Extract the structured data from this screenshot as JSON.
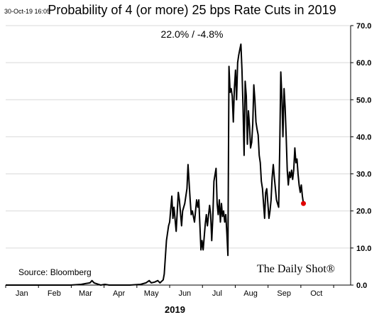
{
  "header": {
    "timestamp": "30-Oct-19 16:05",
    "title": "Probability of 4 (or more) 25 bps Rate Cuts in 2019",
    "subtitle": "22.0%  /  -4.8%"
  },
  "footer": {
    "source": "Source: Bloomberg",
    "brand": "The Daily Shot®"
  },
  "chart_data": {
    "type": "line",
    "title": "Probability of 4 (or more) 25 bps Rate Cuts in 2019",
    "xlabel": "2019",
    "ylabel": "",
    "ylim": [
      0,
      70
    ],
    "yticks": [
      0,
      10,
      20,
      30,
      40,
      50,
      60,
      70
    ],
    "ytick_labels": [
      "0.0",
      "10.0",
      "20.0",
      "30.0",
      "40.0",
      "50.0",
      "60.0",
      "70.0"
    ],
    "x_range_days": [
      0,
      304
    ],
    "xticks": [
      {
        "day": 15,
        "label": "Jan"
      },
      {
        "day": 45,
        "label": "Feb"
      },
      {
        "day": 74,
        "label": "Mar"
      },
      {
        "day": 105,
        "label": "Apr"
      },
      {
        "day": 135,
        "label": "May"
      },
      {
        "day": 166,
        "label": "Jun"
      },
      {
        "day": 196,
        "label": "Jul"
      },
      {
        "day": 227,
        "label": "Aug"
      },
      {
        "day": 258,
        "label": "Sep"
      },
      {
        "day": 288,
        "label": "Oct"
      }
    ],
    "axis_position": "right",
    "grid": true,
    "line_color": "#000000",
    "last_point_color": "#e00000",
    "series": [
      {
        "points": [
          [
            0,
            0
          ],
          [
            10,
            0
          ],
          [
            20,
            0
          ],
          [
            30,
            0
          ],
          [
            40,
            0
          ],
          [
            50,
            0
          ],
          [
            60,
            0
          ],
          [
            70,
            0.2
          ],
          [
            74,
            0.4
          ],
          [
            78,
            0.6
          ],
          [
            80,
            1.2
          ],
          [
            82,
            0.6
          ],
          [
            85,
            0.3
          ],
          [
            88,
            0
          ],
          [
            92,
            0.2
          ],
          [
            96,
            0
          ],
          [
            105,
            0
          ],
          [
            115,
            0
          ],
          [
            125,
            0.2
          ],
          [
            130,
            0.6
          ],
          [
            133,
            1.2
          ],
          [
            135,
            0.6
          ],
          [
            138,
            0.8
          ],
          [
            141,
            1.2
          ],
          [
            143,
            0.6
          ],
          [
            146,
            1.4
          ],
          [
            147,
            3
          ],
          [
            149,
            12
          ],
          [
            151,
            16
          ],
          [
            152,
            17
          ],
          [
            154,
            24
          ],
          [
            155,
            18
          ],
          [
            156,
            21
          ],
          [
            158,
            14.5
          ],
          [
            160,
            25
          ],
          [
            161,
            23
          ],
          [
            163,
            16
          ],
          [
            164,
            20
          ],
          [
            166,
            22
          ],
          [
            168,
            26
          ],
          [
            169,
            32.5
          ],
          [
            171,
            23
          ],
          [
            172,
            19
          ],
          [
            173,
            20
          ],
          [
            175,
            17
          ],
          [
            177,
            23
          ],
          [
            178,
            21
          ],
          [
            179,
            23
          ],
          [
            181,
            9.5
          ],
          [
            182,
            12
          ],
          [
            183,
            9.5
          ],
          [
            185,
            16.5
          ],
          [
            186,
            19
          ],
          [
            187,
            16
          ],
          [
            189,
            21.5
          ],
          [
            190,
            19
          ],
          [
            191,
            12
          ],
          [
            192,
            18
          ],
          [
            193,
            28
          ],
          [
            195,
            31.5
          ],
          [
            196,
            22
          ],
          [
            197,
            19
          ],
          [
            198,
            23
          ],
          [
            199,
            17
          ],
          [
            200,
            22
          ],
          [
            201,
            18.5
          ],
          [
            202,
            20
          ],
          [
            203,
            17
          ],
          [
            204,
            19
          ],
          [
            205,
            14
          ],
          [
            206,
            8
          ],
          [
            207,
            59
          ],
          [
            208,
            52
          ],
          [
            209,
            53
          ],
          [
            210,
            51
          ],
          [
            211,
            44
          ],
          [
            212,
            53
          ],
          [
            213,
            58
          ],
          [
            214,
            50
          ],
          [
            215,
            60
          ],
          [
            216,
            62
          ],
          [
            217,
            63.5
          ],
          [
            218,
            65
          ],
          [
            219,
            58
          ],
          [
            220,
            48
          ],
          [
            221,
            35
          ],
          [
            222,
            55
          ],
          [
            223,
            51
          ],
          [
            224,
            38
          ],
          [
            225,
            47
          ],
          [
            226,
            43
          ],
          [
            227,
            37
          ],
          [
            228,
            38.5
          ],
          [
            229,
            43.5
          ],
          [
            230,
            54
          ],
          [
            231,
            50
          ],
          [
            232,
            44
          ],
          [
            233,
            42
          ],
          [
            234,
            40.5
          ],
          [
            235,
            35
          ],
          [
            236,
            33
          ],
          [
            237,
            28
          ],
          [
            238,
            26
          ],
          [
            239,
            22
          ],
          [
            240,
            18
          ],
          [
            241,
            25
          ],
          [
            242,
            26
          ],
          [
            243,
            22
          ],
          [
            244,
            18
          ],
          [
            245,
            20
          ],
          [
            246,
            23
          ],
          [
            247,
            29
          ],
          [
            248,
            32.5
          ],
          [
            249,
            29
          ],
          [
            250,
            26
          ],
          [
            251,
            23
          ],
          [
            252,
            22
          ],
          [
            253,
            21
          ],
          [
            254,
            37
          ],
          [
            255,
            57.5
          ],
          [
            256,
            51
          ],
          [
            257,
            40
          ],
          [
            258,
            53
          ],
          [
            259,
            48
          ],
          [
            260,
            40
          ],
          [
            261,
            31
          ],
          [
            262,
            27
          ],
          [
            263,
            30.5
          ],
          [
            264,
            29
          ],
          [
            265,
            31
          ],
          [
            266,
            28.5
          ],
          [
            267,
            31
          ],
          [
            268,
            37
          ],
          [
            269,
            33
          ],
          [
            270,
            34
          ],
          [
            271,
            30
          ],
          [
            272,
            27
          ],
          [
            273,
            25
          ],
          [
            274,
            27
          ],
          [
            275,
            24
          ],
          [
            276,
            22
          ]
        ]
      }
    ]
  }
}
